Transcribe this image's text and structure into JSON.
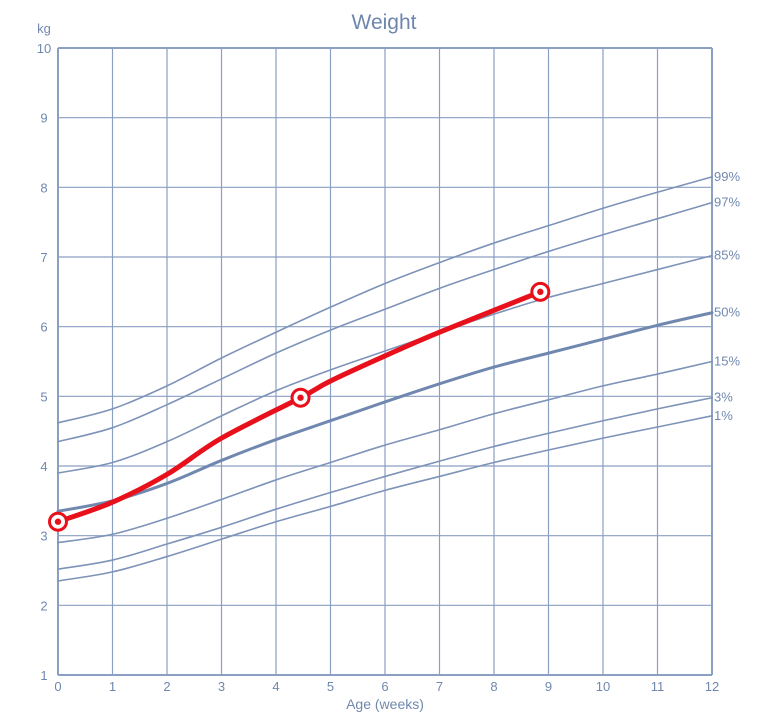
{
  "chart_data": {
    "type": "line",
    "title": "Weight",
    "ylabel": "kg",
    "xlabel": "Age (weeks)",
    "xlim": [
      0,
      12
    ],
    "ylim": [
      1,
      10
    ],
    "x_ticks": [
      "0",
      "1",
      "2",
      "3",
      "4",
      "5",
      "6",
      "7",
      "8",
      "9",
      "10",
      "11",
      "12"
    ],
    "y_ticks": [
      "1",
      "2",
      "3",
      "4",
      "5",
      "6",
      "7",
      "8",
      "9",
      "10"
    ],
    "grid": true,
    "colors": {
      "grid": "#8a9fc2",
      "percentile": "#7d93b8",
      "median": "#7088b0",
      "measured": "#e8101a",
      "text": "#7088af"
    },
    "percentile_x": [
      0,
      1,
      2,
      3,
      4,
      5,
      6,
      7,
      8,
      9,
      10,
      11,
      12
    ],
    "percentiles": [
      {
        "name": "99%",
        "values": [
          4.62,
          4.82,
          5.15,
          5.55,
          5.92,
          6.28,
          6.62,
          6.92,
          7.2,
          7.45,
          7.7,
          7.93,
          8.15
        ]
      },
      {
        "name": "97%",
        "values": [
          4.35,
          4.55,
          4.88,
          5.25,
          5.62,
          5.95,
          6.25,
          6.55,
          6.82,
          7.08,
          7.32,
          7.55,
          7.78
        ]
      },
      {
        "name": "85%",
        "values": [
          3.9,
          4.05,
          4.35,
          4.72,
          5.08,
          5.38,
          5.65,
          5.92,
          6.18,
          6.42,
          6.62,
          6.82,
          7.02
        ]
      },
      {
        "name": "50%",
        "values": [
          3.35,
          3.5,
          3.75,
          4.08,
          4.38,
          4.65,
          4.92,
          5.18,
          5.42,
          5.62,
          5.82,
          6.02,
          6.2
        ]
      },
      {
        "name": "15%",
        "values": [
          2.9,
          3.02,
          3.25,
          3.52,
          3.8,
          4.05,
          4.3,
          4.52,
          4.75,
          4.95,
          5.15,
          5.32,
          5.5
        ]
      },
      {
        "name": "3%",
        "values": [
          2.52,
          2.65,
          2.88,
          3.12,
          3.38,
          3.62,
          3.85,
          4.07,
          4.28,
          4.47,
          4.65,
          4.82,
          4.98
        ]
      },
      {
        "name": "1%",
        "values": [
          2.35,
          2.48,
          2.7,
          2.95,
          3.2,
          3.42,
          3.65,
          3.85,
          4.05,
          4.23,
          4.4,
          4.56,
          4.72
        ]
      }
    ],
    "measured_series": {
      "x": [
        0,
        1,
        2,
        3,
        4.45,
        5,
        6,
        7,
        8.85
      ],
      "values": [
        3.2,
        3.48,
        3.88,
        4.4,
        4.98,
        5.22,
        5.58,
        5.92,
        6.5
      ],
      "markers_at": [
        0,
        4,
        8
      ]
    }
  }
}
